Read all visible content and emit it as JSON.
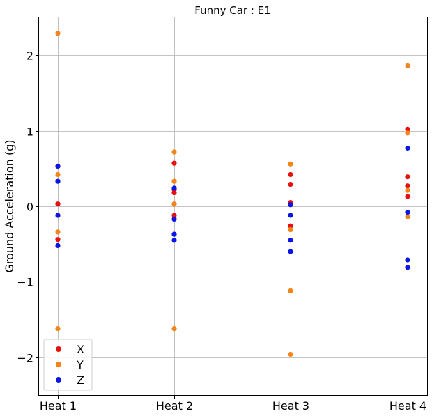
{
  "chart_data": {
    "type": "scatter",
    "title": "Funny Car : E1",
    "xlabel": "",
    "ylabel": "Ground Acceleration (g)",
    "categories": [
      "Heat 1",
      "Heat 2",
      "Heat 3",
      "Heat 4"
    ],
    "ylim": [
      -2.5,
      2.5
    ],
    "yticks": [
      -2,
      -1,
      0,
      1,
      2
    ],
    "ytick_labels": [
      "−2",
      "−1",
      "0",
      "1",
      "2"
    ],
    "grid": true,
    "legend_position": "lower-left",
    "series": [
      {
        "name": "X",
        "color": "#e8100e",
        "points": [
          {
            "x": "Heat 1",
            "y": 0.53
          },
          {
            "x": "Heat 1",
            "y": 0.03
          },
          {
            "x": "Heat 1",
            "y": -0.12
          },
          {
            "x": "Heat 1",
            "y": -0.44
          },
          {
            "x": "Heat 2",
            "y": 0.57
          },
          {
            "x": "Heat 2",
            "y": 0.22
          },
          {
            "x": "Heat 2",
            "y": 0.18
          },
          {
            "x": "Heat 2",
            "y": -0.12
          },
          {
            "x": "Heat 3",
            "y": 0.42
          },
          {
            "x": "Heat 3",
            "y": 0.29
          },
          {
            "x": "Heat 3",
            "y": 0.05
          },
          {
            "x": "Heat 3",
            "y": -0.26
          },
          {
            "x": "Heat 4",
            "y": 1.02
          },
          {
            "x": "Heat 4",
            "y": 0.39
          },
          {
            "x": "Heat 4",
            "y": 0.27
          },
          {
            "x": "Heat 4",
            "y": 0.13
          }
        ]
      },
      {
        "name": "Y",
        "color": "#f58518",
        "points": [
          {
            "x": "Heat 1",
            "y": 2.29
          },
          {
            "x": "Heat 1",
            "y": 0.42
          },
          {
            "x": "Heat 1",
            "y": -0.34
          },
          {
            "x": "Heat 1",
            "y": -1.62
          },
          {
            "x": "Heat 2",
            "y": 0.72
          },
          {
            "x": "Heat 2",
            "y": 0.33
          },
          {
            "x": "Heat 2",
            "y": 0.03
          },
          {
            "x": "Heat 2",
            "y": -1.62
          },
          {
            "x": "Heat 3",
            "y": 0.56
          },
          {
            "x": "Heat 3",
            "y": -0.31
          },
          {
            "x": "Heat 3",
            "y": -1.12
          },
          {
            "x": "Heat 3",
            "y": -1.96
          },
          {
            "x": "Heat 4",
            "y": 1.86
          },
          {
            "x": "Heat 4",
            "y": 0.97
          },
          {
            "x": "Heat 4",
            "y": 0.21
          },
          {
            "x": "Heat 4",
            "y": -0.14
          }
        ]
      },
      {
        "name": "Z",
        "color": "#0a15e6",
        "points": [
          {
            "x": "Heat 1",
            "y": 0.53
          },
          {
            "x": "Heat 1",
            "y": 0.33
          },
          {
            "x": "Heat 1",
            "y": -0.12
          },
          {
            "x": "Heat 1",
            "y": -0.52
          },
          {
            "x": "Heat 2",
            "y": 0.24
          },
          {
            "x": "Heat 2",
            "y": -0.17
          },
          {
            "x": "Heat 2",
            "y": -0.37
          },
          {
            "x": "Heat 2",
            "y": -0.45
          },
          {
            "x": "Heat 3",
            "y": 0.02
          },
          {
            "x": "Heat 3",
            "y": -0.12
          },
          {
            "x": "Heat 3",
            "y": -0.45
          },
          {
            "x": "Heat 3",
            "y": -0.6
          },
          {
            "x": "Heat 4",
            "y": 0.77
          },
          {
            "x": "Heat 4",
            "y": -0.08
          },
          {
            "x": "Heat 4",
            "y": -0.71
          },
          {
            "x": "Heat 4",
            "y": -0.81
          }
        ]
      }
    ]
  }
}
